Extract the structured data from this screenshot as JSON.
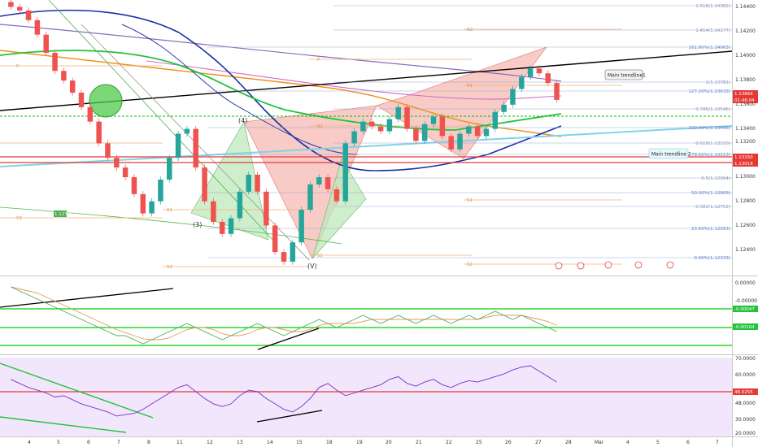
{
  "colors": {
    "background": "#ffffff",
    "up_candle": "#26a69a",
    "down_candle": "#ef5350",
    "harmonic_pattern": "#f4a7a0",
    "harmonic_pattern_green": "#b9e6b5",
    "main_trendline": "#000000",
    "trendline_2": "#7fd3e8",
    "ema_green": "#22c33a",
    "ema_blue": "#1a2fa8",
    "ema_orange": "#f0901c",
    "ema_purple": "#8a6bbf",
    "pivot_line": "#f2a65a",
    "fib_line": "#8aa2d6",
    "red_level": "#e53935",
    "green_level": "#00c000",
    "rsi_fill": "#efe2fa",
    "rsi_line": "#8a2be2",
    "osc_line": "#4caf50",
    "osc_signal": "#e39a65"
  },
  "main_pane": {
    "price_labels": [
      "1.14400",
      "1.14200",
      "1.14000",
      "1.13800",
      "1.13600",
      "1.13400",
      "1.13200",
      "1.13000",
      "1.12800",
      "1.12600",
      "1.12400"
    ],
    "red_tag_1": "1.13664",
    "red_tag_2": "01:46:04",
    "red_level_1": "1.13150",
    "red_level_2": "1.13018",
    "fib_labels": [
      "1.618(1.14382)",
      "1.414(1.14177)",
      "161.80%(1.14063)",
      "1(1.13781)",
      "127.20%(1.13633)",
      "0.786(1.13546)",
      "100.00%(1.13406)",
      "0.618(1.13310)",
      "78.60%(1.13213)",
      "0.5(1.12994)",
      "50.00%(1.12868)",
      "0.382(1.12752)",
      "23.60%(1.12583)",
      "0.00%(1.12333)"
    ],
    "pivot_labels": [
      "R2",
      "R1",
      "P",
      "S1",
      "S2",
      "R1",
      "P",
      "S1",
      "S2",
      "S3",
      "S1"
    ],
    "notes": {
      "main_trendline": "Main trendline1",
      "trendline_2": "Main trendline 2"
    },
    "wave_labels": [
      "(4)",
      "(3)",
      "(V)"
    ],
    "green_box_label": "1.12785"
  },
  "oscillator_pane": {
    "price_labels": [
      "0.00000",
      "-0.00000"
    ],
    "green_tag_1": "-0.00047",
    "green_tag_2": "-0.00104"
  },
  "rsi_pane": {
    "price_labels": [
      "70.0000",
      "60.0000",
      "48.0000",
      "30.0000",
      "20.0000"
    ],
    "red_tag": "48.0255"
  },
  "time_axis": {
    "labels": [
      "4",
      "5",
      "6",
      "7",
      "8",
      "11",
      "12",
      "13",
      "14",
      "15",
      "18",
      "19",
      "20",
      "21",
      "22",
      "25",
      "26",
      "27",
      "28",
      "Mar",
      "4",
      "5",
      "6",
      "7"
    ]
  },
  "chart_data": {
    "type": "line",
    "title": "",
    "xlabel": "",
    "ylabel": "",
    "ylim": [
      1.123,
      1.1446
    ],
    "series": [
      {
        "values": [
          1.1443,
          1.144,
          1.1432,
          1.142,
          1.1405,
          1.139,
          1.1382,
          1.1372,
          1.136,
          1.1348,
          1.133,
          1.1318,
          1.131,
          1.1302,
          1.1288,
          1.1272,
          1.1282,
          1.13,
          1.1318,
          1.1338,
          1.1342,
          1.131,
          1.1282,
          1.1265,
          1.1255,
          1.1268,
          1.129,
          1.1304,
          1.129,
          1.1262,
          1.124,
          1.1232,
          1.1248,
          1.1275,
          1.1296,
          1.1302,
          1.1292,
          1.1282,
          1.133,
          1.134,
          1.1348,
          1.1344,
          1.134,
          1.135,
          1.136,
          1.1342,
          1.1332,
          1.1346,
          1.1352,
          1.1336,
          1.1325,
          1.1338,
          1.1344,
          1.1336,
          1.1342,
          1.1356,
          1.1362,
          1.1375,
          1.1385,
          1.1392,
          1.1388,
          1.138,
          1.1366
        ]
      }
    ],
    "rsi_values": [
      58,
      55,
      52,
      50,
      48,
      45,
      46,
      43,
      40,
      38,
      36,
      34,
      31,
      32,
      33,
      36,
      40,
      44,
      48,
      52,
      54,
      49,
      44,
      40,
      38,
      40,
      46,
      50,
      49,
      44,
      40,
      36,
      34,
      38,
      44,
      52,
      55,
      50,
      46,
      48,
      50,
      52,
      54,
      58,
      60,
      55,
      53,
      56,
      58,
      54,
      52,
      55,
      57,
      56,
      58,
      60,
      62,
      65,
      67,
      68,
      64,
      60,
      56
    ],
    "osc_values": [
      0.0006,
      0.0005,
      0.0004,
      0.0003,
      0.0002,
      0.0001,
      0.0,
      -0.0001,
      -0.0002,
      -0.0003,
      -0.0004,
      -0.0005,
      -0.0006,
      -0.0006,
      -0.0007,
      -0.0008,
      -0.0007,
      -0.0006,
      -0.0005,
      -0.0004,
      -0.0003,
      -0.0004,
      -0.0005,
      -0.0006,
      -0.0007,
      -0.0006,
      -0.0005,
      -0.0004,
      -0.0003,
      -0.0004,
      -0.0005,
      -0.0006,
      -0.0005,
      -0.0004,
      -0.0003,
      -0.0002,
      -0.0003,
      -0.0004,
      -0.0003,
      -0.0002,
      -0.0001,
      -0.0002,
      -0.0003,
      -0.0002,
      -0.0001,
      -0.0002,
      -0.0003,
      -0.0002,
      -0.0001,
      -0.0002,
      -0.0003,
      -0.0002,
      -0.0001,
      -0.0002,
      -0.0001,
      0.0,
      -0.0001,
      -0.0002,
      -0.0001,
      -0.0002,
      -0.0003,
      -0.0004,
      -0.0005
    ]
  }
}
